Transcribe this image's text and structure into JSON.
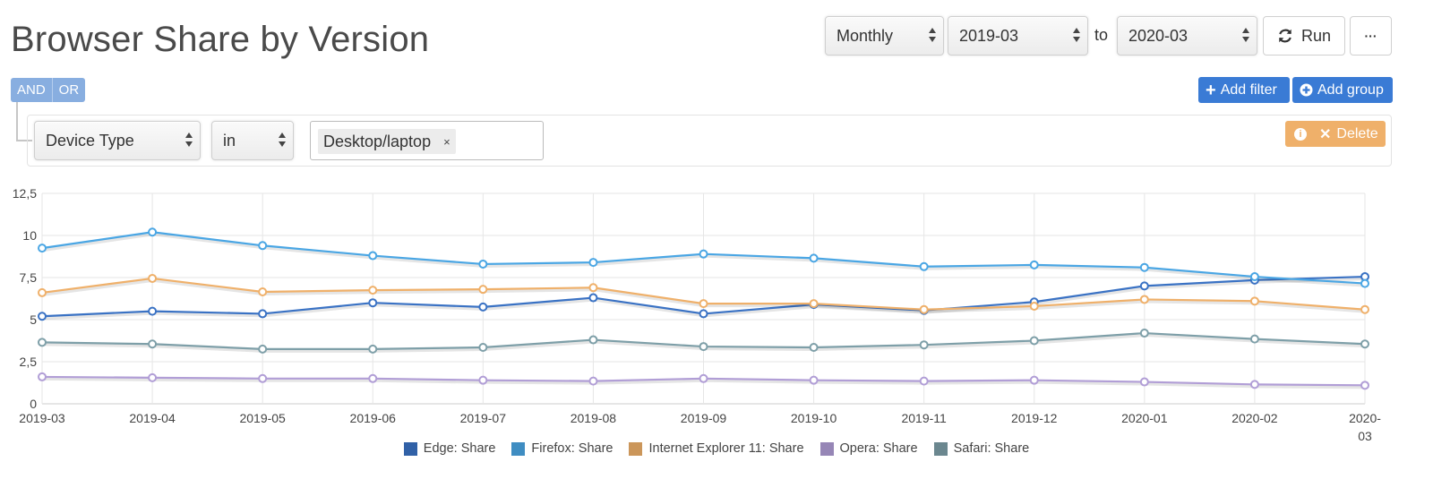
{
  "page": {
    "title": "Browser Share by Version"
  },
  "controls": {
    "granularity": "Monthly",
    "from": "2019-03",
    "to_label": "to",
    "to": "2020-03",
    "run_label": "Run",
    "more_label": "···",
    "and_label": "AND",
    "or_label": "OR",
    "add_filter_label": "Add filter",
    "add_group_label": "Add group"
  },
  "filter": {
    "field": "Device Type",
    "operator": "in",
    "value_chip": "Desktop/laptop",
    "chip_remove": "×",
    "delete_label": "Delete"
  },
  "chart_data": {
    "type": "line",
    "categories": [
      "2019-03",
      "2019-04",
      "2019-05",
      "2019-06",
      "2019-07",
      "2019-08",
      "2019-09",
      "2019-10",
      "2019-11",
      "2019-12",
      "2020-01",
      "2020-02",
      "2020-03"
    ],
    "y_ticks": [
      "0",
      "2,5",
      "5",
      "7,5",
      "10",
      "12,5"
    ],
    "ylim": [
      0,
      12.5
    ],
    "grid": true,
    "legend_position": "bottom",
    "series": [
      {
        "name": "Edge: Share",
        "color": "#3a72c4",
        "values": [
          5.2,
          5.5,
          5.35,
          6.0,
          5.75,
          6.3,
          5.35,
          5.9,
          5.55,
          6.05,
          7.0,
          7.35,
          7.55
        ]
      },
      {
        "name": "Firefox: Share",
        "color": "#4aa6e4",
        "values": [
          9.25,
          10.2,
          9.4,
          8.8,
          8.3,
          8.4,
          8.9,
          8.65,
          8.15,
          8.25,
          8.1,
          7.55,
          7.15
        ]
      },
      {
        "name": "Internet Explorer 11: Share",
        "color": "#efb06a",
        "values": [
          6.6,
          7.45,
          6.65,
          6.75,
          6.8,
          6.9,
          5.95,
          5.95,
          5.6,
          5.8,
          6.2,
          6.1,
          5.6
        ]
      },
      {
        "name": "Opera: Share",
        "color": "#b19ed6",
        "values": [
          1.6,
          1.55,
          1.5,
          1.5,
          1.4,
          1.35,
          1.5,
          1.4,
          1.35,
          1.4,
          1.3,
          1.15,
          1.1
        ]
      },
      {
        "name": "Safari: Share",
        "color": "#7e9fa8",
        "values": [
          3.65,
          3.55,
          3.25,
          3.25,
          3.35,
          3.8,
          3.4,
          3.35,
          3.5,
          3.75,
          4.2,
          3.85,
          3.55
        ]
      }
    ]
  }
}
